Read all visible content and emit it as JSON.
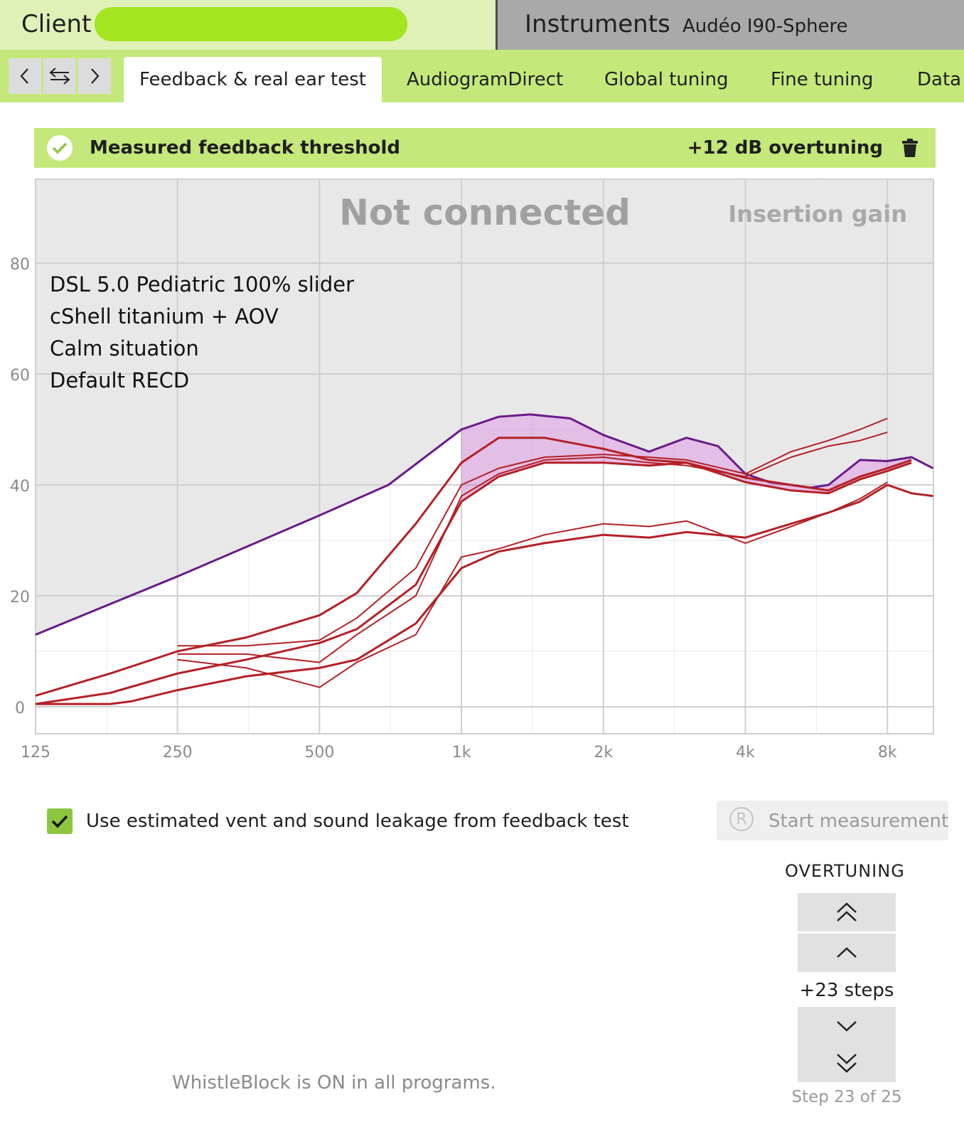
{
  "header": {
    "client_label": "Client",
    "instruments_label": "Instruments",
    "device_name": "Audéo I90-Sphere"
  },
  "nav": {
    "back_icon": "chevron-left-icon",
    "swap_icon": "swap-arrows-icon",
    "forward_icon": "chevron-right-icon"
  },
  "tabs": [
    {
      "label": "Feedback & real ear test",
      "active": true
    },
    {
      "label": "AudiogramDirect",
      "active": false
    },
    {
      "label": "Global tuning",
      "active": false
    },
    {
      "label": "Fine tuning",
      "active": false
    },
    {
      "label": "Data",
      "active": false
    }
  ],
  "banner": {
    "status_text": "Measured feedback threshold",
    "overtuning_text": "+12 dB overtuning"
  },
  "chart": {
    "status_watermark": "Not connected",
    "view_label": "Insertion gain",
    "notes": [
      "DSL 5.0 Pediatric 100% slider",
      "cShell titanium + AOV",
      "Calm situation",
      "Default RECD"
    ]
  },
  "chart_data": {
    "type": "line",
    "xscale": "log",
    "x_ticks": [
      "125",
      "250",
      "500",
      "1k",
      "2k",
      "4k",
      "8k"
    ],
    "y_ticks": [
      "0",
      "20",
      "40",
      "60",
      "80"
    ],
    "ylim": [
      -5,
      95
    ],
    "xlim": [
      125,
      10000
    ],
    "grid": true,
    "series": [
      {
        "role": "feedback threshold",
        "color": "#6a1b8a",
        "points": [
          [
            125,
            13
          ],
          [
            250,
            23.5
          ],
          [
            500,
            34.5
          ],
          [
            700,
            40
          ],
          [
            1000,
            50
          ],
          [
            1200,
            52.3
          ],
          [
            1400,
            52.7
          ],
          [
            1700,
            52
          ],
          [
            2000,
            49
          ],
          [
            2500,
            46
          ],
          [
            3000,
            48.5
          ],
          [
            3500,
            47
          ],
          [
            4000,
            42
          ],
          [
            4500,
            40.5
          ],
          [
            5000,
            40
          ],
          [
            5500,
            39.5
          ],
          [
            6000,
            40
          ],
          [
            7000,
            44.5
          ],
          [
            8000,
            44.3
          ],
          [
            9000,
            45
          ],
          [
            10000,
            43
          ]
        ]
      },
      {
        "role": "gain curve",
        "color": "#b42025",
        "points": [
          [
            125,
            2
          ],
          [
            180,
            6
          ],
          [
            250,
            10
          ],
          [
            350,
            12.5
          ],
          [
            500,
            16.5
          ],
          [
            600,
            20.5
          ],
          [
            800,
            33
          ],
          [
            1000,
            44
          ],
          [
            1200,
            48.5
          ],
          [
            1500,
            48.5
          ],
          [
            2000,
            46.5
          ],
          [
            2500,
            44.5
          ],
          [
            3000,
            44
          ],
          [
            4000,
            41.3
          ],
          [
            5000,
            40
          ],
          [
            6000,
            39
          ],
          [
            7000,
            41.5
          ],
          [
            8000,
            43
          ],
          [
            9000,
            44.5
          ]
        ]
      },
      {
        "role": "gain curve",
        "color": "#b42025",
        "points": [
          [
            125,
            0.5
          ],
          [
            180,
            2.5
          ],
          [
            250,
            6
          ],
          [
            350,
            8.5
          ],
          [
            500,
            11.5
          ],
          [
            600,
            14
          ],
          [
            800,
            22
          ],
          [
            1000,
            37
          ],
          [
            1200,
            41.5
          ],
          [
            1500,
            44
          ],
          [
            2000,
            44
          ],
          [
            2500,
            43.5
          ],
          [
            3000,
            44
          ],
          [
            4000,
            40.5
          ],
          [
            5000,
            39
          ],
          [
            6000,
            38.5
          ],
          [
            7000,
            41
          ],
          [
            8000,
            42.5
          ],
          [
            9000,
            44
          ]
        ]
      },
      {
        "role": "gain curve",
        "color": "#b42025",
        "points": [
          [
            125,
            0.5
          ],
          [
            180,
            0.5
          ],
          [
            200,
            1
          ],
          [
            250,
            3
          ],
          [
            350,
            5.5
          ],
          [
            500,
            7
          ],
          [
            600,
            8.5
          ],
          [
            800,
            15
          ],
          [
            1000,
            25
          ],
          [
            1200,
            28
          ],
          [
            1500,
            29.5
          ],
          [
            2000,
            31
          ],
          [
            2500,
            30.5
          ],
          [
            3000,
            31.5
          ],
          [
            4000,
            30.5
          ],
          [
            5000,
            33
          ],
          [
            6000,
            35
          ],
          [
            7000,
            37
          ],
          [
            8000,
            40
          ],
          [
            9000,
            38.5
          ],
          [
            10000,
            38
          ]
        ]
      },
      {
        "role": "target",
        "color": "#b42025",
        "points": [
          [
            250,
            11
          ],
          [
            350,
            11
          ],
          [
            500,
            12
          ],
          [
            600,
            16
          ],
          [
            800,
            25
          ],
          [
            1000,
            40
          ],
          [
            1200,
            43
          ],
          [
            1500,
            45
          ],
          [
            2000,
            45.5
          ],
          [
            2500,
            45
          ],
          [
            3000,
            44.5
          ],
          [
            4000,
            42
          ],
          [
            5000,
            46
          ],
          [
            6000,
            48
          ],
          [
            7000,
            50
          ],
          [
            8000,
            52
          ]
        ]
      },
      {
        "role": "target",
        "color": "#b42025",
        "points": [
          [
            250,
            9.5
          ],
          [
            350,
            9.5
          ],
          [
            500,
            8
          ],
          [
            600,
            13
          ],
          [
            800,
            20
          ],
          [
            1000,
            38
          ],
          [
            1200,
            42
          ],
          [
            1500,
            44.5
          ],
          [
            2000,
            45
          ],
          [
            2500,
            44
          ],
          [
            3000,
            43.5
          ],
          [
            4000,
            41.5
          ],
          [
            5000,
            45
          ],
          [
            6000,
            47
          ],
          [
            7000,
            48
          ],
          [
            8000,
            49.5
          ]
        ]
      },
      {
        "role": "target",
        "color": "#b42025",
        "points": [
          [
            250,
            8.5
          ],
          [
            350,
            7
          ],
          [
            500,
            3.5
          ],
          [
            600,
            8
          ],
          [
            800,
            13
          ],
          [
            1000,
            27
          ],
          [
            1200,
            28.5
          ],
          [
            1500,
            31
          ],
          [
            2000,
            33
          ],
          [
            2500,
            32.5
          ],
          [
            3000,
            33.5
          ],
          [
            4000,
            29.5
          ],
          [
            5000,
            32.5
          ],
          [
            6000,
            35
          ],
          [
            7000,
            37.5
          ],
          [
            8000,
            40.5
          ]
        ]
      }
    ]
  },
  "options": {
    "use_estimated_vent_label": "Use estimated vent and sound leakage from feedback test",
    "use_estimated_vent_checked": true,
    "start_measurement_label": "Start measurement",
    "start_icon_glyph": "R"
  },
  "overtuning": {
    "title": "OVERTUNING",
    "steps_text": "+23 steps",
    "step_of_text": "Step 23 of 25",
    "icons": [
      "double-chevron-up-icon",
      "chevron-up-icon",
      "chevron-down-icon",
      "double-chevron-down-icon"
    ]
  },
  "footer": {
    "whistleblock_text": "WhistleBlock is ON in all programs."
  },
  "colors": {
    "header_client_bg": "#dff1b7",
    "header_instr_bg": "#a9a9a9",
    "tabbar_bg": "#c4e87a",
    "banner_bg": "#c4e87a",
    "redaction": "#a3e51e",
    "threshold_line": "#6a1b8a",
    "gain_line": "#b42025",
    "margin_fill": "#c77dcf",
    "chart_bg": "#e8e8e8"
  }
}
